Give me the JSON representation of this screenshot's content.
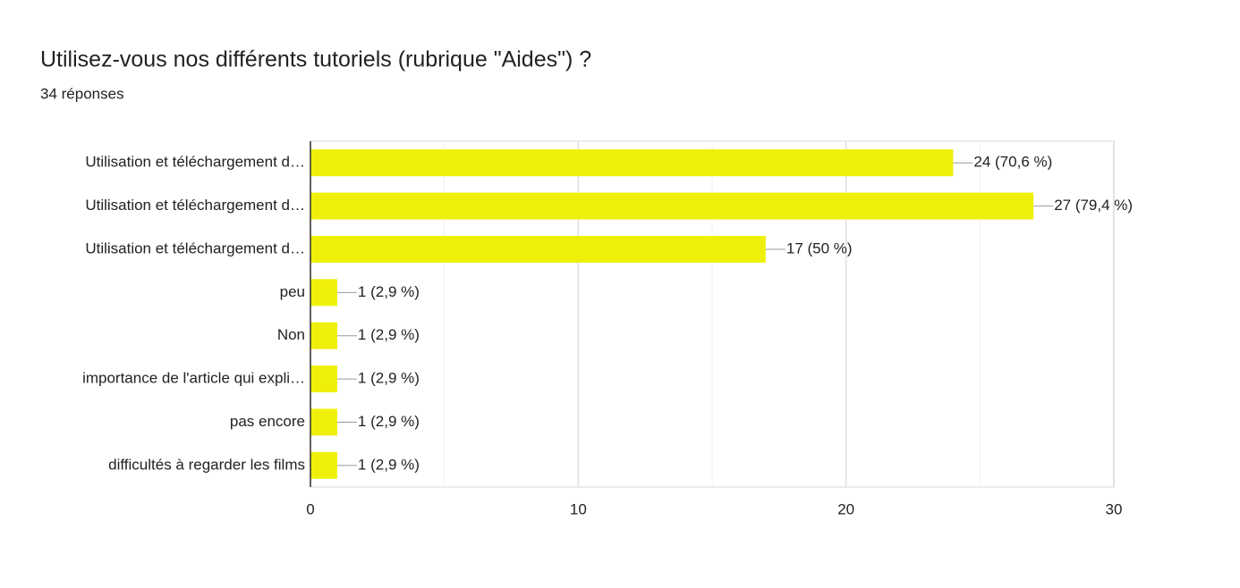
{
  "chart_data": {
    "type": "hbar",
    "title": "Utilisez-vous nos différents tutoriels (rubrique \"Aides\") ?",
    "subtitle": "34 réponses",
    "categories": [
      "Utilisation et téléchargement d…",
      "Utilisation et téléchargement d…",
      "Utilisation et téléchargement d…",
      "peu",
      "Non",
      "importance de l'article qui expli…",
      "pas encore",
      "difficultés à regarder les films"
    ],
    "values": [
      24,
      27,
      17,
      1,
      1,
      1,
      1,
      1
    ],
    "value_labels": [
      "24 (70,6 %)",
      "27 (79,4 %)",
      "17 (50 %)",
      "1 (2,9 %)",
      "1 (2,9 %)",
      "1 (2,9 %)",
      "1 (2,9 %)",
      "1 (2,9 %)"
    ],
    "color": "#eff00a",
    "xlim": [
      0,
      30
    ],
    "xticks": [
      0,
      10,
      20,
      30
    ],
    "xminor": [
      5,
      15,
      25
    ],
    "grid": true
  }
}
